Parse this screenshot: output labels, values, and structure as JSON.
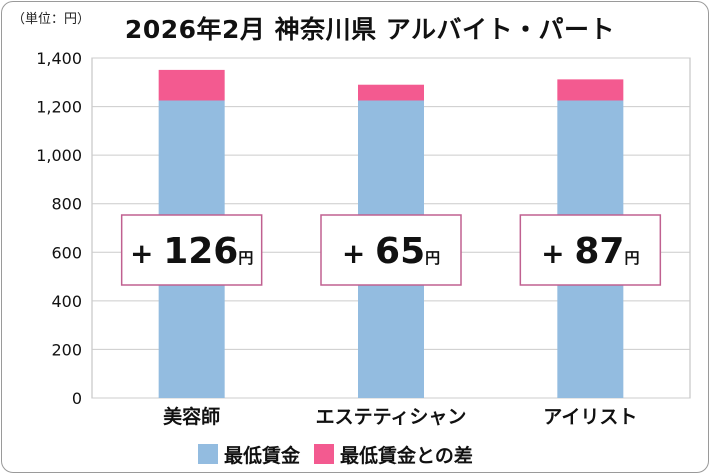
{
  "unit_label": "（単位：円）",
  "title": "2026年2月 神奈川県 アルバイト・パート",
  "colors": {
    "base": "#93bce0",
    "diff": "#f35a90",
    "box_border": "#c06090",
    "grid": "#cccccc"
  },
  "chart_data": {
    "type": "bar",
    "stacked": true,
    "title": "2026年2月 神奈川県 アルバイト・パート",
    "categories": [
      "美容師",
      "エステティシャン",
      "アイリスト"
    ],
    "series": [
      {
        "name": "最低賃金",
        "values": [
          1225,
          1225,
          1225
        ]
      },
      {
        "name": "最低賃金との差",
        "values": [
          126,
          65,
          87
        ]
      }
    ],
    "ylim": [
      0,
      1400
    ],
    "yticks": [
      0,
      200,
      400,
      600,
      800,
      1000,
      1200,
      1400
    ],
    "ytick_labels": [
      "0",
      "200",
      "400",
      "600",
      "800",
      "1,000",
      "1,200",
      "1,400"
    ],
    "grid": true,
    "legend": "bottom",
    "annotations": [
      {
        "sign": "+",
        "value": "126",
        "unit": "円"
      },
      {
        "sign": "+",
        "value": "65",
        "unit": "円"
      },
      {
        "sign": "+",
        "value": "87",
        "unit": "円"
      }
    ]
  }
}
